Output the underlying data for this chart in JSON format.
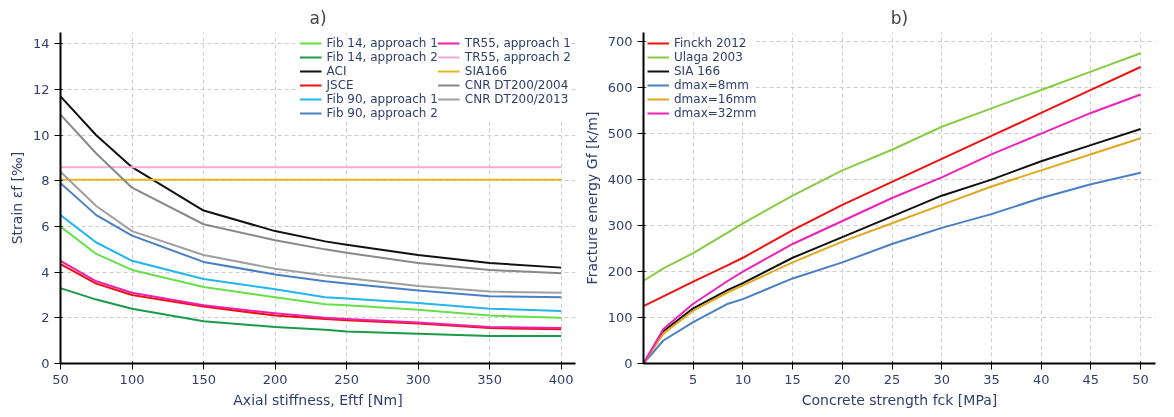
{
  "chart_data": [
    {
      "type": "line",
      "title": "a)",
      "xlabel": "Axial stiffness, Eftf [Nm]",
      "ylabel": "Strain εf [‰]",
      "x": [
        50,
        75,
        100,
        150,
        200,
        235,
        250,
        300,
        350,
        400
      ],
      "xlim": [
        50,
        410
      ],
      "ylim": [
        0,
        14.5
      ],
      "xticks": [
        50,
        100,
        150,
        200,
        250,
        300,
        350,
        400
      ],
      "yticks": [
        0,
        2,
        4,
        6,
        8,
        10,
        12,
        14
      ],
      "grid": true,
      "legend": "top right",
      "line_style": "solid",
      "series": [
        {
          "name": "Fib 14, approach 1",
          "color": "#66e04a",
          "values": [
            6.0,
            4.8,
            4.1,
            3.35,
            2.9,
            2.6,
            2.55,
            2.35,
            2.1,
            2.0
          ]
        },
        {
          "name": "Fib 14, approach 2",
          "color": "#1a9a4a",
          "values": [
            3.3,
            2.8,
            2.4,
            1.85,
            1.6,
            1.48,
            1.4,
            1.3,
            1.2,
            1.2
          ]
        },
        {
          "name": "ACI",
          "color": "#111111",
          "values": [
            11.7,
            10.0,
            8.6,
            6.7,
            5.8,
            5.35,
            5.2,
            4.75,
            4.4,
            4.2
          ]
        },
        {
          "name": "JSCE",
          "color": "#ee1111",
          "values": [
            4.35,
            3.5,
            3.0,
            2.5,
            2.1,
            1.95,
            1.9,
            1.75,
            1.55,
            1.5
          ]
        },
        {
          "name": "Fib 90, approach 1",
          "color": "#22b5ee",
          "values": [
            6.5,
            5.3,
            4.5,
            3.7,
            3.25,
            2.9,
            2.85,
            2.65,
            2.4,
            2.3
          ]
        },
        {
          "name": "Fib 90, approach 2",
          "color": "#4a7fc4",
          "values": [
            7.9,
            6.5,
            5.6,
            4.45,
            3.9,
            3.6,
            3.5,
            3.2,
            2.95,
            2.9
          ]
        },
        {
          "name": "TR55, approach 1",
          "color": "#ee22aa",
          "values": [
            4.5,
            3.6,
            3.1,
            2.55,
            2.2,
            2.0,
            1.95,
            1.8,
            1.6,
            1.55
          ]
        },
        {
          "name": "TR55, approach 2",
          "color": "#f5a8e0",
          "values": [
            8.6,
            8.6,
            8.6,
            8.6,
            8.6,
            8.6,
            8.6,
            8.6,
            8.6,
            8.6
          ]
        },
        {
          "name": "SIA166",
          "color": "#e8b820",
          "values": [
            8.05,
            8.05,
            8.05,
            8.05,
            8.05,
            8.05,
            8.05,
            8.05,
            8.05,
            8.05
          ]
        },
        {
          "name": "CNR DT200/2004",
          "color": "#888888",
          "values": [
            10.9,
            9.2,
            7.7,
            6.1,
            5.4,
            5.0,
            4.85,
            4.4,
            4.1,
            3.95
          ]
        },
        {
          "name": "CNR DT200/2013",
          "color": "#a0a0a0",
          "values": [
            8.4,
            6.9,
            5.8,
            4.75,
            4.15,
            3.85,
            3.75,
            3.4,
            3.15,
            3.1
          ]
        }
      ]
    },
    {
      "type": "line",
      "title": "b)",
      "xlabel": "Concrete strength fck [MPa]",
      "ylabel": "Fracture energy Gf [k/m]",
      "x": [
        0,
        2,
        5,
        8.5,
        10,
        15,
        20,
        25,
        30,
        35,
        40,
        45,
        50
      ],
      "xlim": [
        0,
        51.5
      ],
      "ylim": [
        0,
        720
      ],
      "xticks": [
        5,
        10,
        15,
        20,
        25,
        30,
        35,
        40,
        45,
        50
      ],
      "yticks": [
        0,
        100,
        200,
        300,
        400,
        500,
        600,
        700
      ],
      "grid": true,
      "legend": "top left",
      "line_style": "solid",
      "series": [
        {
          "name": "Finckh 2012",
          "color": "#ee1111",
          "values": [
            125,
            146,
            178,
            214,
            230,
            290,
            345,
            395,
            445,
            495,
            545,
            595,
            645
          ]
        },
        {
          "name": "Ulaga 2003",
          "color": "#88cc44",
          "values": [
            180,
            207,
            240,
            285,
            305,
            365,
            420,
            465,
            515,
            555,
            595,
            635,
            675
          ]
        },
        {
          "name": "SIA 166",
          "color": "#111111",
          "values": [
            0,
            70,
            120,
            160,
            175,
            230,
            275,
            320,
            365,
            400,
            440,
            475,
            510
          ]
        },
        {
          "name": "dmax=8mm",
          "color": "#4a7fc4",
          "values": [
            0,
            50,
            90,
            130,
            140,
            185,
            220,
            260,
            295,
            325,
            360,
            390,
            415
          ]
        },
        {
          "name": "dmax=16mm",
          "color": "#e0a820",
          "values": [
            0,
            65,
            115,
            155,
            170,
            220,
            265,
            305,
            345,
            385,
            420,
            455,
            490
          ]
        },
        {
          "name": "dmax=32mm",
          "color": "#ee22bb",
          "values": [
            0,
            75,
            130,
            180,
            200,
            260,
            310,
            360,
            405,
            455,
            500,
            545,
            585
          ]
        }
      ]
    }
  ]
}
